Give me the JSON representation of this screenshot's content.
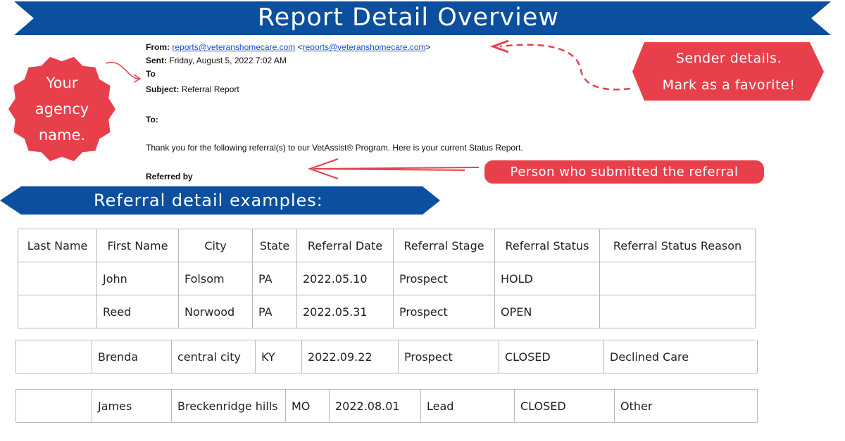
{
  "banner": {
    "title": "Report Detail Overview"
  },
  "email": {
    "from": {
      "label": "From:",
      "address": "reports@veteranshomecare.com",
      "bracket_open": "<",
      "bracket_address": "reports@veteranshomecare.com",
      "bracket_close": ">"
    },
    "sent": {
      "label": "Sent:",
      "value": "Friday, August 5, 2022 7:02 AM"
    },
    "to": "To",
    "subject": {
      "label": "Subject:",
      "value": "Referral Report"
    },
    "to_2": "To:",
    "body": "Thank you for the following referral(s) to our VetAssist® Program. Here is your current Status Report.",
    "referred_by": "Referred by"
  },
  "callouts": {
    "agency": [
      "Your",
      "agency",
      "name."
    ],
    "sender": [
      "Sender details.",
      "Mark as a favorite!"
    ],
    "referrer": "Person who submitted the referral"
  },
  "section": {
    "title": "Referral detail examples:"
  },
  "tables": [
    {
      "header": [
        "Last Name",
        "First Name",
        "City",
        "State",
        "Referral Date",
        "Referral Stage",
        "Referral Status",
        "Referral Status Reason"
      ],
      "rows": [
        [
          null,
          "John",
          "Folsom",
          "PA",
          "2022.05.10",
          "Prospect",
          "HOLD",
          null
        ],
        [
          null,
          "Reed",
          "Norwood",
          "PA",
          "2022.05.31",
          "Prospect",
          "OPEN",
          null
        ]
      ]
    },
    {
      "rows": [
        [
          null,
          "Brenda",
          "central city",
          "KY",
          "2022.09.22",
          "Prospect",
          "CLOSED",
          "Declined Care"
        ]
      ]
    },
    {
      "rows": [
        [
          null,
          "James",
          "Breckenridge hills",
          "MO",
          "2022.08.01",
          "Lead",
          "CLOSED",
          "Other"
        ]
      ]
    }
  ]
}
